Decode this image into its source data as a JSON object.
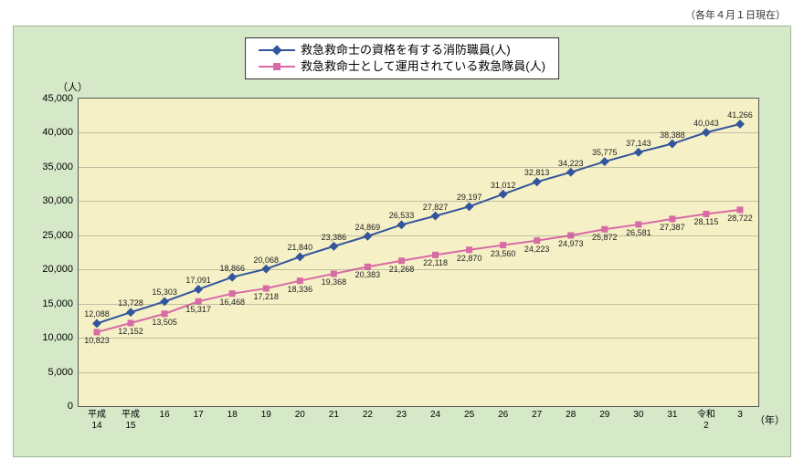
{
  "meta": {
    "topNote": "（各年４月１日現在）",
    "yUnit": "（人）",
    "xUnit": "（年）"
  },
  "chart": {
    "type": "line",
    "background_color": "#d5e8c8",
    "plot_color": "#f5f0c5",
    "grid_color": "rgba(100,100,100,0.35)",
    "ylim": [
      0,
      45000
    ],
    "ytick_step": 5000,
    "categories": [
      "平成\n14",
      "平成\n15",
      "16",
      "17",
      "18",
      "19",
      "20",
      "21",
      "22",
      "23",
      "24",
      "25",
      "26",
      "27",
      "28",
      "29",
      "30",
      "31",
      "令和\n2",
      "3"
    ],
    "series": [
      {
        "name": "救急救命士の資格を有する消防職員(人)",
        "color": "#33559d",
        "marker": "diamond",
        "label_side": "above",
        "values": [
          12088,
          13728,
          15303,
          17091,
          18866,
          20068,
          21840,
          23386,
          24869,
          26533,
          27827,
          29197,
          31012,
          32813,
          34223,
          35775,
          37143,
          38388,
          40043,
          41266
        ]
      },
      {
        "name": "救急救命士として運用されている救急隊員(人)",
        "color": "#d86aa5",
        "marker": "square",
        "label_side": "below",
        "values": [
          10823,
          12152,
          13505,
          15317,
          16468,
          17218,
          18336,
          19368,
          20383,
          21268,
          22118,
          22870,
          23560,
          24223,
          24973,
          25872,
          26581,
          27387,
          28115,
          28722
        ]
      }
    ]
  }
}
